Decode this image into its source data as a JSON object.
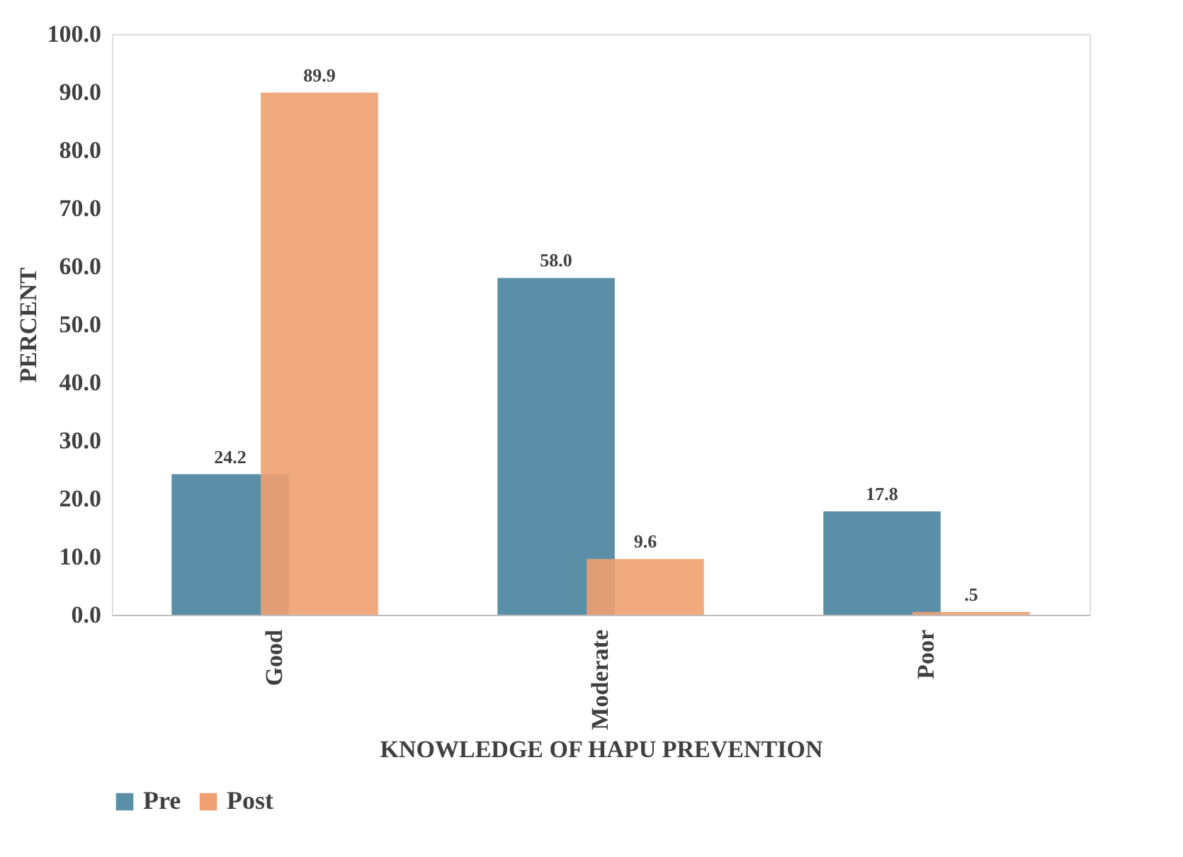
{
  "chart_data": {
    "type": "bar",
    "xlabel": "KNOWLEDGE OF HAPU PREVENTION",
    "ylabel": "PERCENT",
    "categories": [
      "Good",
      "Moderate",
      "Poor"
    ],
    "series": [
      {
        "name": "Pre",
        "color": "#5b8fa8",
        "values": [
          24.2,
          58.0,
          17.8
        ],
        "value_labels": [
          "24.2",
          "58.0",
          "17.8"
        ]
      },
      {
        "name": "Post",
        "color": "#f0a070",
        "values": [
          89.9,
          9.6,
          0.5
        ],
        "value_labels": [
          "89.9",
          "9.6",
          ".5"
        ]
      }
    ],
    "ylim": [
      0,
      100
    ],
    "yticks": [
      {
        "value": 0,
        "label": "0.0"
      },
      {
        "value": 10,
        "label": "10.0"
      },
      {
        "value": 20,
        "label": "20.0"
      },
      {
        "value": 30,
        "label": "30.0"
      },
      {
        "value": 40,
        "label": "40.0"
      },
      {
        "value": 50,
        "label": "50.0"
      },
      {
        "value": 60,
        "label": "60.0"
      },
      {
        "value": 70,
        "label": "70.0"
      },
      {
        "value": 80,
        "label": "80.0"
      },
      {
        "value": 90,
        "label": "90.0"
      },
      {
        "value": 100,
        "label": "100.0"
      }
    ],
    "grid": false,
    "legend": "bottom"
  }
}
